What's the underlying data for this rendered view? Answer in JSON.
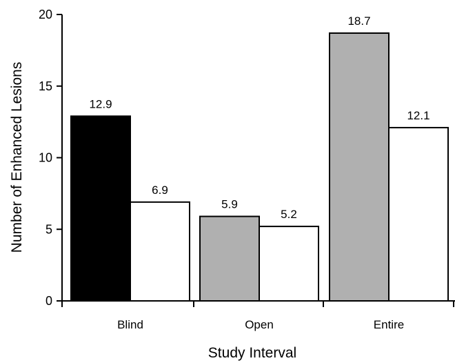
{
  "chart_data": {
    "type": "bar",
    "title": "",
    "xlabel": "Study Interval",
    "ylabel": "Number of Enhanced Lesions",
    "ylim": [
      0,
      20
    ],
    "yticks": [
      0,
      5,
      10,
      15,
      20
    ],
    "grid": false,
    "legend": "none",
    "categories": [
      "Blind",
      "Open",
      "Entire"
    ],
    "bars": [
      [
        {
          "value": 12.9,
          "label": "12.9",
          "fill": "#000000"
        },
        {
          "value": 6.9,
          "label": "6.9",
          "fill": "#ffffff"
        }
      ],
      [
        {
          "value": 5.9,
          "label": "5.9",
          "fill": "#b0b0b0"
        },
        {
          "value": 5.2,
          "label": "5.2",
          "fill": "#ffffff"
        }
      ],
      [
        {
          "value": 18.7,
          "label": "18.7",
          "fill": "#b0b0b0"
        },
        {
          "value": 12.1,
          "label": "12.1",
          "fill": "#ffffff"
        }
      ]
    ]
  }
}
